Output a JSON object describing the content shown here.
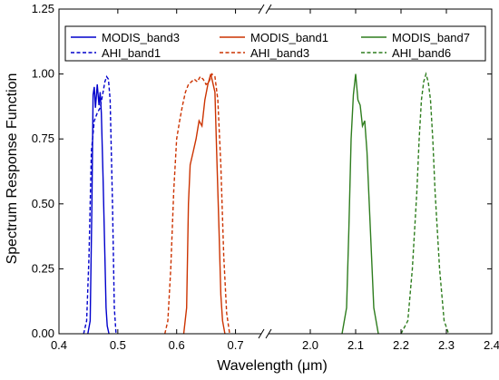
{
  "chart_data": {
    "type": "line",
    "xlabel": "Wavelength (μm)",
    "ylabel": "Spectrum Response Function",
    "ylim": [
      0,
      1.25
    ],
    "yticks": [
      0.0,
      0.25,
      0.5,
      0.75,
      1.0,
      1.25
    ],
    "x_axis_break": {
      "left_range": [
        0.4,
        0.75
      ],
      "right_range": [
        1.9,
        2.4
      ]
    },
    "xticks": [
      0.4,
      0.5,
      0.6,
      0.7,
      2.0,
      2.1,
      2.2,
      2.3,
      2.4
    ],
    "legend_position": "top",
    "grid": false,
    "series": [
      {
        "name": "MODIS_band3",
        "color": "#0000cc",
        "dash": "solid",
        "x": [
          0.449,
          0.453,
          0.456,
          0.458,
          0.46,
          0.462,
          0.465,
          0.468,
          0.47,
          0.472,
          0.475,
          0.478,
          0.48,
          0.482,
          0.485
        ],
        "y": [
          0.0,
          0.05,
          0.5,
          0.92,
          0.95,
          0.87,
          0.96,
          0.88,
          0.93,
          0.85,
          0.6,
          0.3,
          0.1,
          0.03,
          0.0
        ]
      },
      {
        "name": "AHI_band1",
        "color": "#0000cc",
        "dash": "dashed",
        "x": [
          0.442,
          0.447,
          0.451,
          0.455,
          0.46,
          0.465,
          0.47,
          0.475,
          0.478,
          0.481,
          0.484,
          0.487,
          0.491,
          0.494,
          0.497
        ],
        "y": [
          0.0,
          0.05,
          0.3,
          0.7,
          0.82,
          0.85,
          0.87,
          0.93,
          0.97,
          0.99,
          0.98,
          0.9,
          0.5,
          0.1,
          0.0
        ]
      },
      {
        "name": "MODIS_band1",
        "color": "#cc3300",
        "dash": "solid",
        "x": [
          0.612,
          0.617,
          0.62,
          0.623,
          0.628,
          0.633,
          0.638,
          0.643,
          0.648,
          0.653,
          0.658,
          0.661,
          0.665,
          0.668,
          0.672,
          0.675,
          0.678,
          0.682
        ],
        "y": [
          0.0,
          0.1,
          0.5,
          0.65,
          0.7,
          0.75,
          0.82,
          0.8,
          0.9,
          0.96,
          1.0,
          0.97,
          0.93,
          0.7,
          0.4,
          0.15,
          0.05,
          0.0
        ]
      },
      {
        "name": "AHI_band3",
        "color": "#cc3300",
        "dash": "dashed",
        "x": [
          0.58,
          0.585,
          0.59,
          0.595,
          0.6,
          0.605,
          0.61,
          0.615,
          0.62,
          0.625,
          0.63,
          0.635,
          0.64,
          0.645,
          0.65,
          0.655,
          0.66,
          0.665,
          0.67,
          0.675,
          0.68,
          0.685,
          0.69
        ],
        "y": [
          0.0,
          0.05,
          0.25,
          0.55,
          0.75,
          0.82,
          0.88,
          0.93,
          0.96,
          0.97,
          0.98,
          0.97,
          0.99,
          0.98,
          0.96,
          0.97,
          1.0,
          0.99,
          0.9,
          0.65,
          0.3,
          0.08,
          0.0
        ]
      },
      {
        "name": "MODIS_band7",
        "color": "#2e7d1e",
        "dash": "solid",
        "x": [
          2.07,
          2.08,
          2.085,
          2.09,
          2.095,
          2.1,
          2.105,
          2.11,
          2.115,
          2.12,
          2.125,
          2.13,
          2.135,
          2.14,
          2.15
        ],
        "y": [
          0.0,
          0.1,
          0.4,
          0.75,
          0.92,
          1.0,
          0.9,
          0.88,
          0.8,
          0.82,
          0.7,
          0.5,
          0.3,
          0.1,
          0.0
        ]
      },
      {
        "name": "AHI_band6",
        "color": "#2e7d1e",
        "dash": "dashed",
        "x": [
          2.2,
          2.215,
          2.225,
          2.235,
          2.24,
          2.245,
          2.25,
          2.255,
          2.26,
          2.265,
          2.27,
          2.275,
          2.285,
          2.295,
          2.305
        ],
        "y": [
          0.0,
          0.05,
          0.25,
          0.55,
          0.75,
          0.9,
          0.97,
          1.0,
          0.97,
          0.9,
          0.75,
          0.55,
          0.25,
          0.05,
          0.0
        ]
      }
    ]
  }
}
